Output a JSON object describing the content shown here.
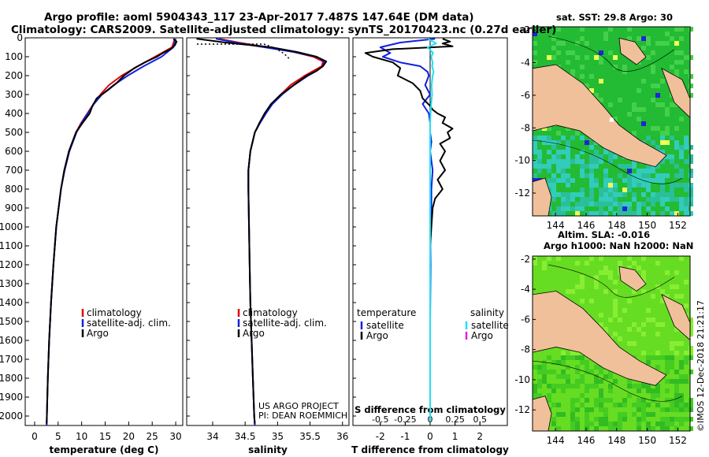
{
  "header": {
    "title_line1": "Argo profile: aoml 5904343_117 23-Apr-2017 7.487S 147.64E (DM data)",
    "title_line2": "Climatology: CARS2009. Satellite-adjusted climatology: synTS_20170423.nc (0.27d earlier)"
  },
  "credits": {
    "project": "US ARGO PROJECT",
    "pi": "PI: DEAN ROEMMICH",
    "imos_stamp": "©IMOS 12-Dec-2018 21:21:17"
  },
  "colors": {
    "climatology": "#e00000",
    "satellite": "#1020e0",
    "argo": "#000000",
    "salinity_satellite": "#20e0f0",
    "salinity_argo": "#e020e0",
    "land": "#f0c09a",
    "sst_base": "#22bb33",
    "sla_base": "#66dd22"
  },
  "chart_data": [
    {
      "type": "line",
      "panel": "temperature",
      "xlabel": "temperature (deg C)",
      "ylabel": "depth (dbar)",
      "xlim": [
        -2,
        31.5
      ],
      "ylim": [
        2050,
        0
      ],
      "x_ticks": [
        0,
        5,
        10,
        15,
        20,
        25,
        30
      ],
      "y_ticks": [
        0,
        100,
        200,
        300,
        400,
        500,
        600,
        700,
        800,
        900,
        1000,
        1100,
        1200,
        1300,
        1400,
        1500,
        1600,
        1700,
        1800,
        1900,
        2000
      ],
      "legend": [
        "climatology",
        "satellite-adj. clim.",
        "Argo"
      ],
      "series": [
        {
          "name": "climatology",
          "depth": [
            5,
            50,
            100,
            150,
            200,
            250,
            300,
            350,
            400,
            450,
            500,
            600,
            700,
            800,
            900,
            1000,
            1200,
            1400,
            1600,
            1800,
            2000,
            2050
          ],
          "values": [
            29.8,
            29.2,
            25.6,
            22.0,
            18.5,
            15.8,
            14.0,
            12.5,
            11.2,
            9.9,
            8.8,
            7.3,
            6.3,
            5.6,
            5.1,
            4.6,
            4.0,
            3.5,
            3.1,
            2.8,
            2.6,
            2.55
          ]
        },
        {
          "name": "satellite-adj. clim.",
          "depth": [
            5,
            50,
            100,
            150,
            200,
            250,
            300,
            350,
            400,
            450,
            500,
            600,
            700,
            800,
            900,
            1000,
            1200,
            1400,
            1600,
            1800,
            2000,
            2050
          ],
          "values": [
            30.0,
            29.5,
            27.0,
            23.2,
            19.8,
            16.8,
            14.3,
            12.6,
            11.3,
            10.0,
            8.9,
            7.4,
            6.4,
            5.6,
            5.1,
            4.6,
            4.0,
            3.5,
            3.1,
            2.8,
            2.6,
            2.55
          ]
        },
        {
          "name": "Argo",
          "depth": [
            5,
            20,
            40,
            60,
            80,
            100,
            130,
            160,
            200,
            240,
            280,
            320,
            360,
            400,
            450,
            500,
            600,
            700,
            800,
            900,
            1000,
            1200,
            1400,
            1600,
            1800,
            2000,
            2040
          ],
          "values": [
            29.5,
            30.2,
            29.8,
            28.9,
            27.3,
            26.0,
            23.4,
            21.2,
            19.0,
            17.4,
            15.4,
            13.2,
            12.3,
            11.7,
            10.2,
            8.8,
            7.3,
            6.3,
            5.6,
            5.1,
            4.6,
            4.0,
            3.5,
            3.1,
            2.8,
            2.6,
            2.55
          ]
        }
      ]
    },
    {
      "type": "line",
      "panel": "salinity",
      "xlabel": "salinity",
      "xlim": [
        33.6,
        36.1
      ],
      "ylim": [
        2050,
        0
      ],
      "x_ticks": [
        34,
        34.5,
        35,
        35.5,
        36
      ],
      "x_tick_labels": [
        "34",
        "34.5",
        "35",
        "35.5",
        "36"
      ],
      "legend": [
        "climatology",
        "satellite-adj. clim.",
        "Argo"
      ],
      "series": [
        {
          "name": "climatology",
          "depth": [
            5,
            25,
            50,
            75,
            100,
            125,
            150,
            175,
            200,
            250,
            300,
            350,
            400,
            450,
            500,
            600,
            700,
            800,
            1000,
            1200,
            1400,
            1600,
            1800,
            2000,
            2050
          ],
          "values": [
            34.1,
            34.4,
            34.85,
            35.25,
            35.55,
            35.7,
            35.68,
            35.55,
            35.42,
            35.2,
            35.05,
            34.9,
            34.82,
            34.73,
            34.65,
            34.58,
            34.55,
            34.55,
            34.56,
            34.57,
            34.58,
            34.6,
            34.62,
            34.64,
            34.65
          ]
        },
        {
          "name": "satellite-adj. clim.",
          "depth": [
            5,
            25,
            50,
            75,
            100,
            125,
            150,
            175,
            200,
            250,
            300,
            350,
            400,
            450,
            500,
            600,
            700,
            800,
            1000,
            1200,
            1400,
            1600,
            1800,
            2000,
            2050
          ],
          "values": [
            34.05,
            34.35,
            34.8,
            35.25,
            35.6,
            35.72,
            35.7,
            35.6,
            35.47,
            35.25,
            35.07,
            34.92,
            34.82,
            34.73,
            34.65,
            34.58,
            34.55,
            34.55,
            34.56,
            34.57,
            34.58,
            34.6,
            34.62,
            34.64,
            34.65
          ]
        },
        {
          "name": "Argo",
          "depth": [
            5,
            25,
            50,
            75,
            100,
            125,
            150,
            175,
            200,
            250,
            300,
            350,
            400,
            450,
            500,
            600,
            700,
            800,
            1000,
            1200,
            1400,
            1600,
            1800,
            2000,
            2040
          ],
          "values": [
            33.75,
            34.2,
            34.9,
            35.3,
            35.6,
            35.75,
            35.7,
            35.6,
            35.45,
            35.25,
            35.05,
            34.9,
            34.8,
            34.72,
            34.65,
            34.58,
            34.55,
            34.55,
            34.56,
            34.57,
            34.58,
            34.6,
            34.62,
            34.64,
            34.65
          ]
        }
      ]
    },
    {
      "type": "line",
      "panel": "difference",
      "xlabel": "T difference from climatology",
      "top_axis_label": "S difference from climatology",
      "xlim": [
        -3.1,
        3.1
      ],
      "ylim": [
        2050,
        0
      ],
      "x_ticks": [
        -2,
        -1,
        0,
        1,
        2
      ],
      "top_ticks": [
        -0.5,
        -0.25,
        0,
        0.25,
        0.5
      ],
      "top_tick_labels": [
        "-0.5",
        "-0.25",
        "0",
        "0.25",
        "0.5"
      ],
      "legend_left_title": "temperature",
      "legend_left": [
        "satellite",
        "Argo"
      ],
      "legend_right_title": "salinity",
      "legend_right": [
        "satellite",
        "Argo"
      ],
      "series": [
        {
          "name": "temperature satellite",
          "depth": [
            5,
            25,
            50,
            80,
            100,
            130,
            150,
            180,
            200,
            250,
            300,
            350,
            400,
            450,
            500,
            550,
            600,
            700,
            800,
            900,
            1000,
            1200,
            1500,
            1800,
            2000,
            2030
          ],
          "values": [
            0.2,
            -1.2,
            -2.0,
            -1.6,
            -1.9,
            -1.2,
            -0.4,
            -0.1,
            -0.05,
            -0.2,
            0.0,
            -0.3,
            -0.05,
            0.0,
            0.0,
            0.05,
            0.0,
            0.1,
            0.05,
            0.05,
            0.0,
            0.02,
            0.0,
            0.0,
            0.0,
            0.0
          ]
        },
        {
          "name": "temperature Argo",
          "depth": [
            5,
            20,
            30,
            45,
            60,
            80,
            100,
            130,
            160,
            200,
            240,
            280,
            320,
            360,
            380,
            400,
            420,
            450,
            480,
            500,
            530,
            560,
            600,
            650,
            700,
            750,
            800,
            850,
            900,
            1000,
            1100,
            1200,
            1400,
            1600,
            1800,
            2000,
            2030
          ],
          "values": [
            0.5,
            0.8,
            0.5,
            0.9,
            -1.5,
            -2.6,
            -2.3,
            -1.5,
            -1.2,
            -1.3,
            -0.7,
            -0.4,
            -0.3,
            0.0,
            0.1,
            0.3,
            0.6,
            0.5,
            0.9,
            0.7,
            0.8,
            0.4,
            0.6,
            0.4,
            0.6,
            0.3,
            0.5,
            0.2,
            0.1,
            0.05,
            0.0,
            0.0,
            0.0,
            0.0,
            0.0,
            0.0,
            0.0
          ]
        },
        {
          "name": "salinity satellite",
          "depth": [
            5,
            30,
            50,
            80,
            100,
            130,
            150,
            180,
            200,
            250,
            300,
            350,
            400,
            450,
            500,
            550,
            600,
            700,
            800,
            1000,
            1200,
            1500,
            2000,
            2030
          ],
          "values": [
            -0.04,
            0.12,
            -0.05,
            0.06,
            0.02,
            0.05,
            0.04,
            0.07,
            0.05,
            0.03,
            0.04,
            0.02,
            0.01,
            0.0,
            0.0,
            0.0,
            0.0,
            0.0,
            0.0,
            0.0,
            0.0,
            0.0,
            0.0,
            0.0
          ]
        }
      ]
    },
    {
      "type": "heatmap",
      "panel": "map-sst",
      "title": "sat. SST: 29.8 Argo: 30",
      "x_ticks": [
        144,
        146,
        148,
        150,
        152
      ],
      "y_ticks": [
        -2,
        -4,
        -6,
        -8,
        -10,
        -12
      ],
      "xlim": [
        142.5,
        152.8
      ],
      "ylim": [
        -13.4,
        -1.8
      ],
      "argo_position": [
        147.64,
        -7.487
      ]
    },
    {
      "type": "heatmap",
      "panel": "map-sla",
      "title_line1": "Altim. SLA: -0.016",
      "title_line2": "Argo h1000: NaN h2000: NaN",
      "x_ticks": [
        144,
        146,
        148,
        150,
        152
      ],
      "y_ticks": [
        -2,
        -4,
        -6,
        -8,
        -10,
        -12
      ],
      "xlim": [
        142.5,
        152.8
      ],
      "ylim": [
        -13.4,
        -1.8
      ]
    }
  ]
}
